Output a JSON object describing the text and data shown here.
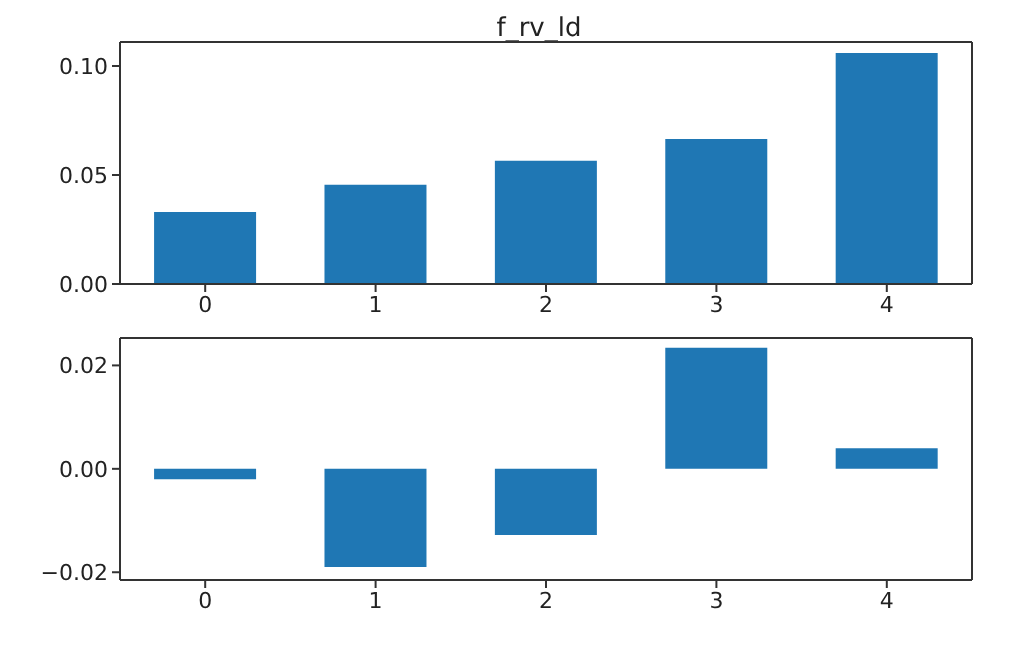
{
  "chart_data": [
    {
      "type": "bar",
      "title": "f_rv_ld",
      "categories": [
        "0",
        "1",
        "2",
        "3",
        "4"
      ],
      "values": [
        0.033,
        0.0455,
        0.0565,
        0.0665,
        0.106
      ],
      "color": "#1f77b4",
      "ylim": [
        0,
        0.111
      ],
      "yticks": [
        {
          "value": 0,
          "label": "0.00"
        },
        {
          "value": 0.05,
          "label": "0.05"
        },
        {
          "value": 0.1,
          "label": "0.10"
        }
      ],
      "grid": false,
      "legend": false
    },
    {
      "type": "bar",
      "categories": [
        "0",
        "1",
        "2",
        "3",
        "4"
      ],
      "values": [
        -0.002,
        -0.019,
        -0.0128,
        0.0234,
        0.004
      ],
      "color": "#1f77b4",
      "ylim": [
        -0.0215,
        0.0253
      ],
      "yticks": [
        {
          "value": -0.02,
          "label": "−0.02"
        },
        {
          "value": 0,
          "label": "0.00"
        },
        {
          "value": 0.02,
          "label": "0.02"
        }
      ],
      "grid": false,
      "legend": false
    }
  ]
}
